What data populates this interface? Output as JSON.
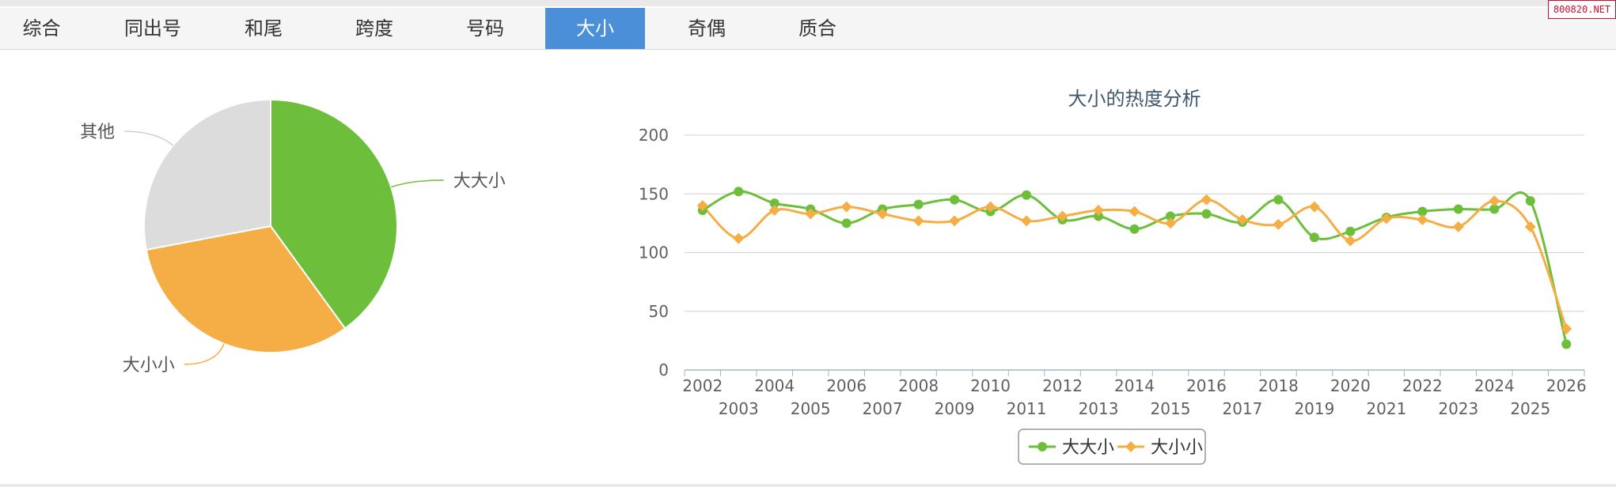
{
  "tabs": [
    {
      "label": "综合",
      "active": false
    },
    {
      "label": "同出号",
      "active": false
    },
    {
      "label": "和尾",
      "active": false
    },
    {
      "label": "跨度",
      "active": false
    },
    {
      "label": "号码",
      "active": false
    },
    {
      "label": "大小",
      "active": true
    },
    {
      "label": "奇偶",
      "active": false
    },
    {
      "label": "质合",
      "active": false
    }
  ],
  "watermark": "800820.NET",
  "chart_data": [
    {
      "type": "pie",
      "slices": [
        {
          "label": "大大小",
          "value": 40,
          "color": "#6dbf3b"
        },
        {
          "label": "大小小",
          "value": 32,
          "color": "#f5ad45"
        },
        {
          "label": "其他",
          "value": 28,
          "color": "#dcdcdc"
        }
      ]
    },
    {
      "type": "line",
      "title": "大小的热度分析",
      "x": [
        "2002",
        "2003",
        "2004",
        "2005",
        "2006",
        "2007",
        "2008",
        "2009",
        "2010",
        "2011",
        "2012",
        "2013",
        "2014",
        "2015",
        "2016",
        "2017",
        "2018",
        "2019",
        "2020",
        "2021",
        "2022",
        "2023",
        "2024",
        "2025",
        "2026"
      ],
      "ylim": [
        0,
        200
      ],
      "yticks": [
        0,
        50,
        100,
        150,
        200
      ],
      "grid": true,
      "legend": "bottom-center",
      "series": [
        {
          "name": "大大小",
          "color": "#6dbf3b",
          "marker": "circle",
          "values": [
            136,
            152,
            142,
            137,
            125,
            137,
            141,
            145,
            135,
            149,
            128,
            131,
            120,
            131,
            133,
            126,
            145,
            113,
            118,
            130,
            135,
            137,
            137,
            144,
            22
          ]
        },
        {
          "name": "大小小",
          "color": "#f5ad45",
          "marker": "diamond",
          "values": [
            140,
            112,
            136,
            133,
            139,
            133,
            127,
            127,
            139,
            127,
            131,
            136,
            135,
            125,
            145,
            128,
            124,
            139,
            110,
            129,
            128,
            122,
            144,
            122,
            35
          ]
        }
      ]
    }
  ]
}
